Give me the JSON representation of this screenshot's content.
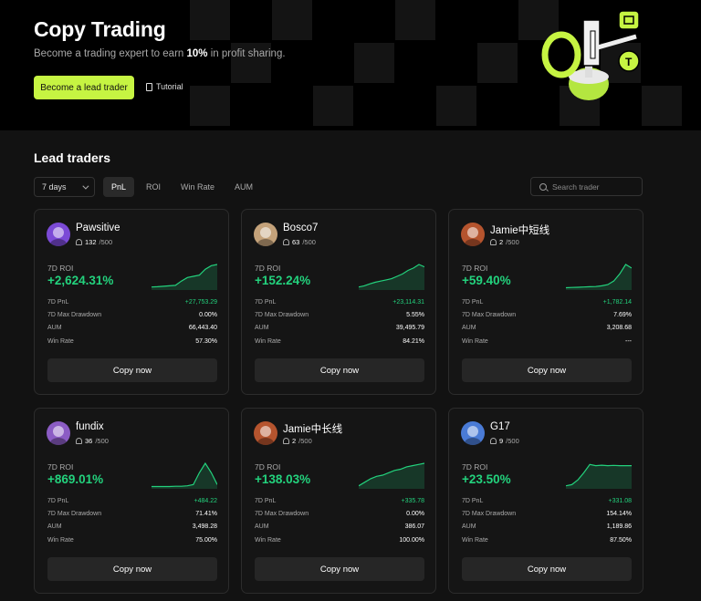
{
  "hero": {
    "title": "Copy Trading",
    "subtitle_prefix": "Become a trading expert to earn ",
    "subtitle_highlight": "10%",
    "subtitle_suffix": " in profit sharing.",
    "primary_button": "Become a lead trader",
    "tutorial_link": "Tutorial"
  },
  "section_title": "Lead traders",
  "filters": {
    "period": "7 days",
    "tabs": [
      "PnL",
      "ROI",
      "Win Rate",
      "AUM"
    ],
    "active_tab": "PnL",
    "search_placeholder": "Search trader"
  },
  "labels": {
    "roi": "7D ROI",
    "pnl": "7D PnL",
    "drawdown": "7D Max Drawdown",
    "aum": "AUM",
    "win_rate": "Win Rate",
    "copy": "Copy now"
  },
  "colors": {
    "accent": "#c6f442",
    "positive": "#23d27d",
    "background": "#121212"
  },
  "traders": [
    {
      "name": "Pawsitive",
      "followers": "132",
      "max": "/500",
      "roi": "+2,624.31%",
      "pnl": "+27,753.29",
      "drawdown": "0.00%",
      "aum": "66,443.40",
      "win_rate": "57.30%",
      "avatar_color": "#7b4ad6",
      "spark": [
        0.05,
        0.06,
        0.08,
        0.1,
        0.12,
        0.3,
        0.45,
        0.5,
        0.55,
        0.8,
        0.95,
        1.0
      ]
    },
    {
      "name": "Bosco7",
      "followers": "63",
      "max": "/500",
      "roi": "+152.24%",
      "pnl": "+23,114.31",
      "drawdown": "5.55%",
      "aum": "39,495.79",
      "win_rate": "84.21%",
      "avatar_color": "#c4a27a",
      "spark": [
        0.05,
        0.1,
        0.18,
        0.25,
        0.3,
        0.35,
        0.4,
        0.5,
        0.6,
        0.75,
        0.85,
        1.0,
        0.9
      ]
    },
    {
      "name": "Jamie中短线",
      "followers": "2",
      "max": "/500",
      "roi": "+59.40%",
      "pnl": "+1,782.14",
      "drawdown": "7.69%",
      "aum": "3,208.68",
      "win_rate": "---",
      "avatar_color": "#b5542e",
      "spark": [
        0.02,
        0.03,
        0.04,
        0.05,
        0.06,
        0.07,
        0.1,
        0.15,
        0.3,
        0.6,
        1.0,
        0.85
      ]
    },
    {
      "name": "fundix",
      "followers": "36",
      "max": "/500",
      "roi": "+869.01%",
      "pnl": "+484.22",
      "drawdown": "71.41%",
      "aum": "3,498.28",
      "win_rate": "75.00%",
      "avatar_color": "#8b5cc4",
      "spark": [
        0.02,
        0.02,
        0.02,
        0.02,
        0.03,
        0.03,
        0.05,
        0.1,
        0.6,
        1.0,
        0.6,
        0.1
      ]
    },
    {
      "name": "Jamie中长线",
      "followers": "2",
      "max": "/500",
      "roi": "+138.03%",
      "pnl": "+335.78",
      "drawdown": "0.00%",
      "aum": "386.07",
      "win_rate": "100.00%",
      "avatar_color": "#b5542e",
      "spark": [
        0.05,
        0.2,
        0.35,
        0.45,
        0.5,
        0.6,
        0.7,
        0.75,
        0.85,
        0.9,
        0.95,
        1.0
      ]
    },
    {
      "name": "G17",
      "followers": "9",
      "max": "/500",
      "roi": "+23.50%",
      "pnl": "+331.08",
      "drawdown": "154.14%",
      "aum": "1,189.86",
      "win_rate": "87.50%",
      "avatar_color": "#4a7bd6",
      "spark": [
        0.05,
        0.1,
        0.3,
        0.6,
        0.95,
        0.9,
        0.92,
        0.9,
        0.91,
        0.9,
        0.9,
        0.9
      ]
    }
  ]
}
